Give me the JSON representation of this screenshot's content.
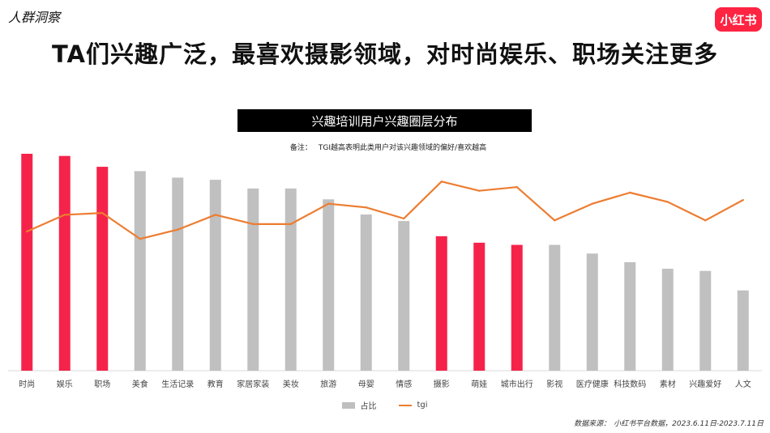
{
  "header": {
    "section_tag": "人群洞察",
    "logo_text": "小红书",
    "headline": "TA们兴趣广泛，最喜欢摄影领域，对时尚娱乐、职场关注更多"
  },
  "chart_data": {
    "type": "bar",
    "title": "兴趣培训用户兴趣圈层分布",
    "note_label": "备注：",
    "note_text": "TGI越高表明此类用户对该兴趣领域的偏好/喜欢越高",
    "categories": [
      "时尚",
      "娱乐",
      "职场",
      "美食",
      "生活记录",
      "教育",
      "家居家装",
      "美妆",
      "旅游",
      "母婴",
      "情感",
      "摄影",
      "萌娃",
      "城市出行",
      "影视",
      "医疗健康",
      "科技数码",
      "素材",
      "兴趣爱好",
      "人文"
    ],
    "series": [
      {
        "name": "占比",
        "kind": "bar",
        "values": [
          100,
          99,
          94,
          92,
          89,
          88,
          84,
          84,
          79,
          72,
          69,
          62,
          59,
          58,
          58,
          54,
          50,
          47,
          46,
          37
        ]
      },
      {
        "name": "tgi",
        "kind": "line",
        "values": [
          62,
          71,
          72,
          58,
          63,
          71,
          66,
          66,
          77,
          75,
          69,
          89,
          84,
          86,
          68,
          77,
          83,
          78,
          68,
          79
        ]
      }
    ],
    "highlighted_categories": [
      "时尚",
      "娱乐",
      "职场",
      "摄影",
      "萌娃",
      "城市出行"
    ],
    "colors": {
      "highlight_bar": "#f5234a",
      "bar": "#c0c0c0",
      "line": "#ed7d31"
    },
    "grid": false,
    "legend_position": "bottom"
  },
  "footer": {
    "source_label": "数据来源：",
    "source_text": "小红书平台数据，2023.6.11日-2023.7.11日"
  }
}
